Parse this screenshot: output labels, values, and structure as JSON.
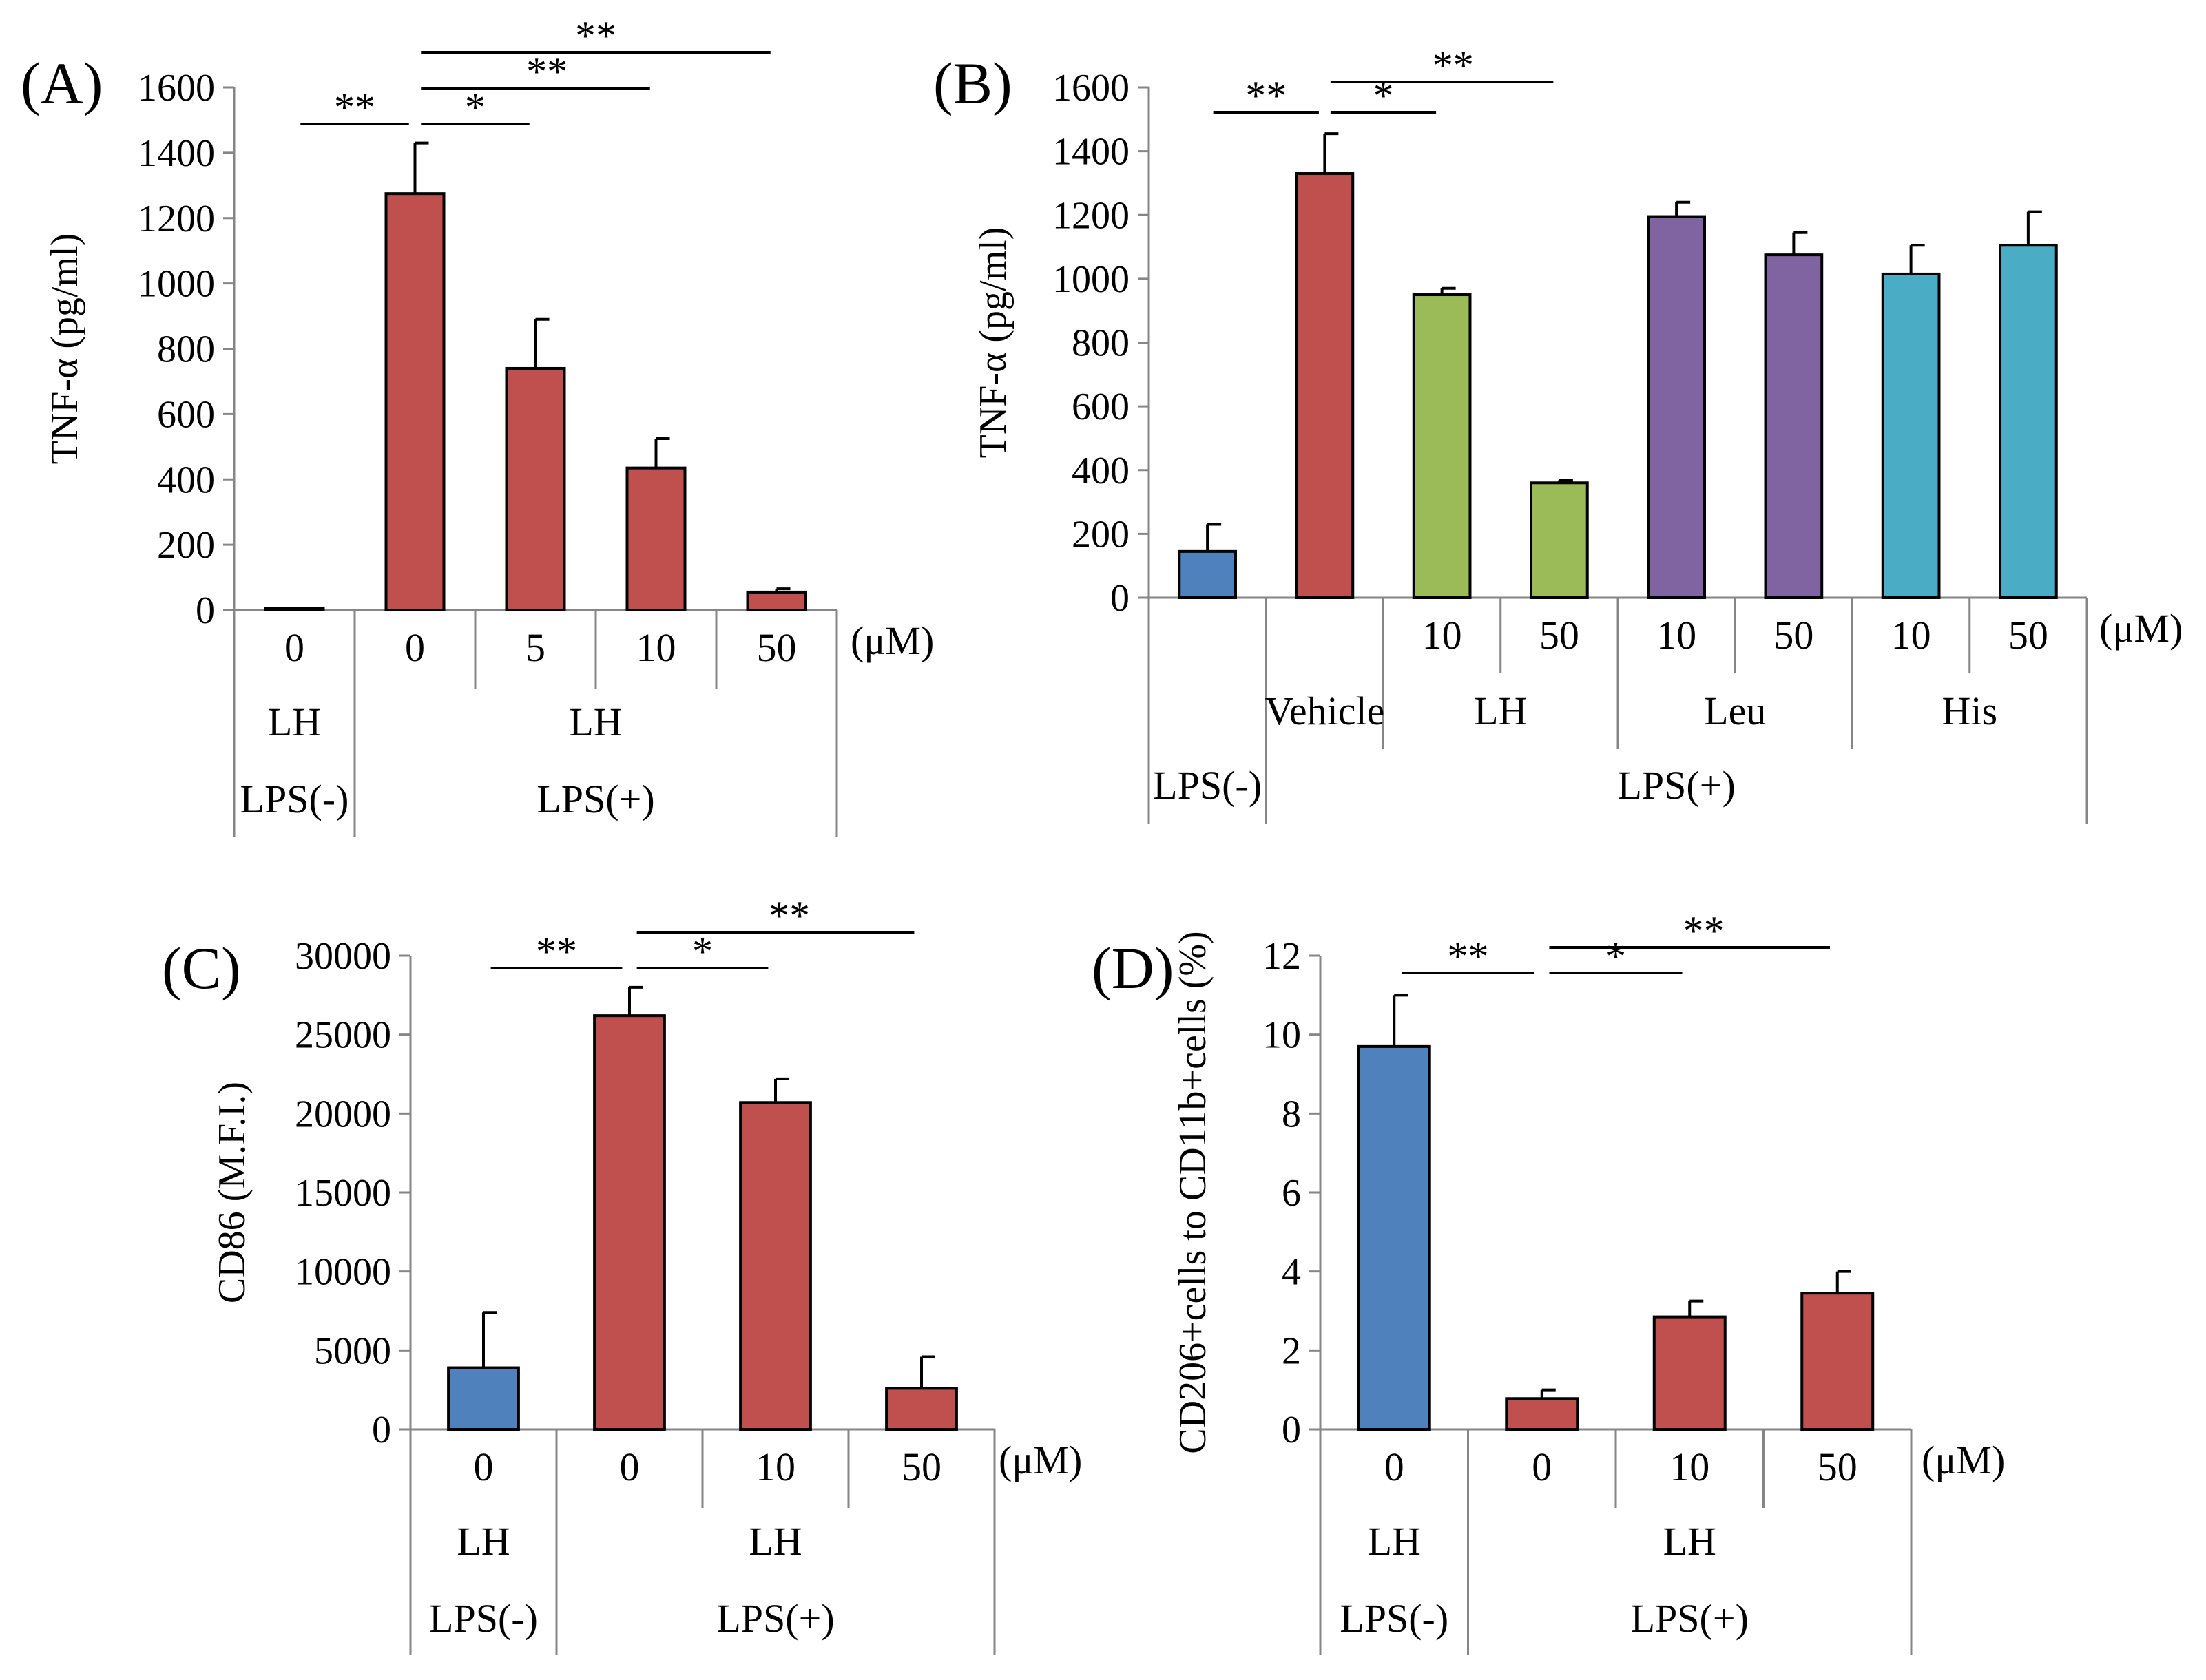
{
  "figure": {
    "unit_label": "(μM)"
  },
  "chart_data": [
    {
      "panel": "(A)",
      "type": "bar",
      "ylabel": "TNF-α (pg/ml)",
      "ylim": [
        0,
        1600
      ],
      "yticks": [
        "0",
        "200",
        "400",
        "600",
        "800",
        "1000",
        "1200",
        "1400",
        "1600"
      ],
      "bars": [
        {
          "dose": "0",
          "value": 5,
          "err": 0,
          "color": "#c0504d"
        },
        {
          "dose": "0",
          "value": 1275,
          "err": 155,
          "color": "#c0504d"
        },
        {
          "dose": "5",
          "value": 740,
          "err": 150,
          "color": "#c0504d"
        },
        {
          "dose": "10",
          "value": 435,
          "err": 90,
          "color": "#c0504d"
        },
        {
          "dose": "50",
          "value": 55,
          "err": 10,
          "color": "#c0504d"
        }
      ],
      "row_agent": [
        {
          "label": "LH",
          "start": 0,
          "end": 1
        },
        {
          "label": "LH",
          "start": 1,
          "end": 5
        }
      ],
      "row_lps": [
        {
          "label": "LPS(-)",
          "start": 0,
          "end": 1
        },
        {
          "label": "LPS(+)",
          "start": 1,
          "end": 5
        }
      ],
      "significance": [
        {
          "from": 0,
          "to": 1,
          "label": "**",
          "level": 0
        },
        {
          "from": 1,
          "to": 2,
          "label": "*",
          "level": 0
        },
        {
          "from": 1,
          "to": 3,
          "label": "**",
          "level": 1
        },
        {
          "from": 1,
          "to": 4,
          "label": "**",
          "level": 2
        }
      ]
    },
    {
      "panel": "(B)",
      "type": "bar",
      "ylabel": "TNF-α (pg/ml)",
      "ylim": [
        0,
        1600
      ],
      "yticks": [
        "0",
        "200",
        "400",
        "600",
        "800",
        "1000",
        "1200",
        "1400",
        "1600"
      ],
      "bars": [
        {
          "dose": "",
          "value": 145,
          "err": 85,
          "color": "#4f81bd"
        },
        {
          "dose": "",
          "value": 1330,
          "err": 125,
          "color": "#c0504d"
        },
        {
          "dose": "10",
          "value": 950,
          "err": 20,
          "color": "#9bbb59"
        },
        {
          "dose": "50",
          "value": 360,
          "err": 8,
          "color": "#9bbb59"
        },
        {
          "dose": "10",
          "value": 1195,
          "err": 45,
          "color": "#8064a2"
        },
        {
          "dose": "50",
          "value": 1075,
          "err": 70,
          "color": "#8064a2"
        },
        {
          "dose": "10",
          "value": 1015,
          "err": 90,
          "color": "#4bacc6"
        },
        {
          "dose": "50",
          "value": 1105,
          "err": 105,
          "color": "#4bacc6"
        }
      ],
      "row_agent": [
        {
          "label": "Vehicle",
          "start": 1,
          "end": 2
        },
        {
          "label": "LH",
          "start": 2,
          "end": 4
        },
        {
          "label": "Leu",
          "start": 4,
          "end": 6
        },
        {
          "label": "His",
          "start": 6,
          "end": 8
        }
      ],
      "row_lps": [
        {
          "label": "LPS(-)",
          "start": 0,
          "end": 1
        },
        {
          "label": "LPS(+)",
          "start": 1,
          "end": 8
        }
      ],
      "significance": [
        {
          "from": 0,
          "to": 1,
          "label": "**",
          "level": 0
        },
        {
          "from": 1,
          "to": 2,
          "label": "*",
          "level": 0
        },
        {
          "from": 1,
          "to": 3,
          "label": "**",
          "level": 1
        }
      ]
    },
    {
      "panel": "(C)",
      "type": "bar",
      "ylabel": "CD86 (M.F.I.)",
      "ylim": [
        0,
        30000
      ],
      "yticks": [
        "0",
        "5000",
        "10000",
        "15000",
        "20000",
        "25000",
        "30000"
      ],
      "bars": [
        {
          "dose": "0",
          "value": 3900,
          "err": 3500,
          "color": "#4f81bd"
        },
        {
          "dose": "0",
          "value": 26200,
          "err": 1800,
          "color": "#c0504d"
        },
        {
          "dose": "10",
          "value": 20700,
          "err": 1500,
          "color": "#c0504d"
        },
        {
          "dose": "50",
          "value": 2600,
          "err": 2000,
          "color": "#c0504d"
        }
      ],
      "row_agent": [
        {
          "label": "LH",
          "start": 0,
          "end": 1
        },
        {
          "label": "LH",
          "start": 1,
          "end": 4
        }
      ],
      "row_lps": [
        {
          "label": "LPS(-)",
          "start": 0,
          "end": 1
        },
        {
          "label": "LPS(+)",
          "start": 1,
          "end": 4
        }
      ],
      "significance": [
        {
          "from": 0,
          "to": 1,
          "label": "**",
          "level": 0
        },
        {
          "from": 1,
          "to": 2,
          "label": "*",
          "level": 0
        },
        {
          "from": 1,
          "to": 3,
          "label": "**",
          "level": 1
        }
      ]
    },
    {
      "panel": "(D)",
      "type": "bar",
      "ylabel": "CD206+cells to CD11b+cells (%)",
      "ylim": [
        0,
        12
      ],
      "yticks": [
        "0",
        "2",
        "4",
        "6",
        "8",
        "10",
        "12"
      ],
      "bars": [
        {
          "dose": "0",
          "value": 9.7,
          "err": 1.3,
          "color": "#4f81bd"
        },
        {
          "dose": "0",
          "value": 0.78,
          "err": 0.22,
          "color": "#c0504d"
        },
        {
          "dose": "10",
          "value": 2.85,
          "err": 0.4,
          "color": "#c0504d"
        },
        {
          "dose": "50",
          "value": 3.45,
          "err": 0.55,
          "color": "#c0504d"
        }
      ],
      "row_agent": [
        {
          "label": "LH",
          "start": 0,
          "end": 1
        },
        {
          "label": "LH",
          "start": 1,
          "end": 4
        }
      ],
      "row_lps": [
        {
          "label": "LPS(-)",
          "start": 0,
          "end": 1
        },
        {
          "label": "LPS(+)",
          "start": 1,
          "end": 4
        }
      ],
      "significance": [
        {
          "from": 0,
          "to": 1,
          "label": "**",
          "level": 0
        },
        {
          "from": 1,
          "to": 2,
          "label": "*",
          "level": 0
        },
        {
          "from": 1,
          "to": 3,
          "label": "**",
          "level": 1
        }
      ]
    }
  ]
}
